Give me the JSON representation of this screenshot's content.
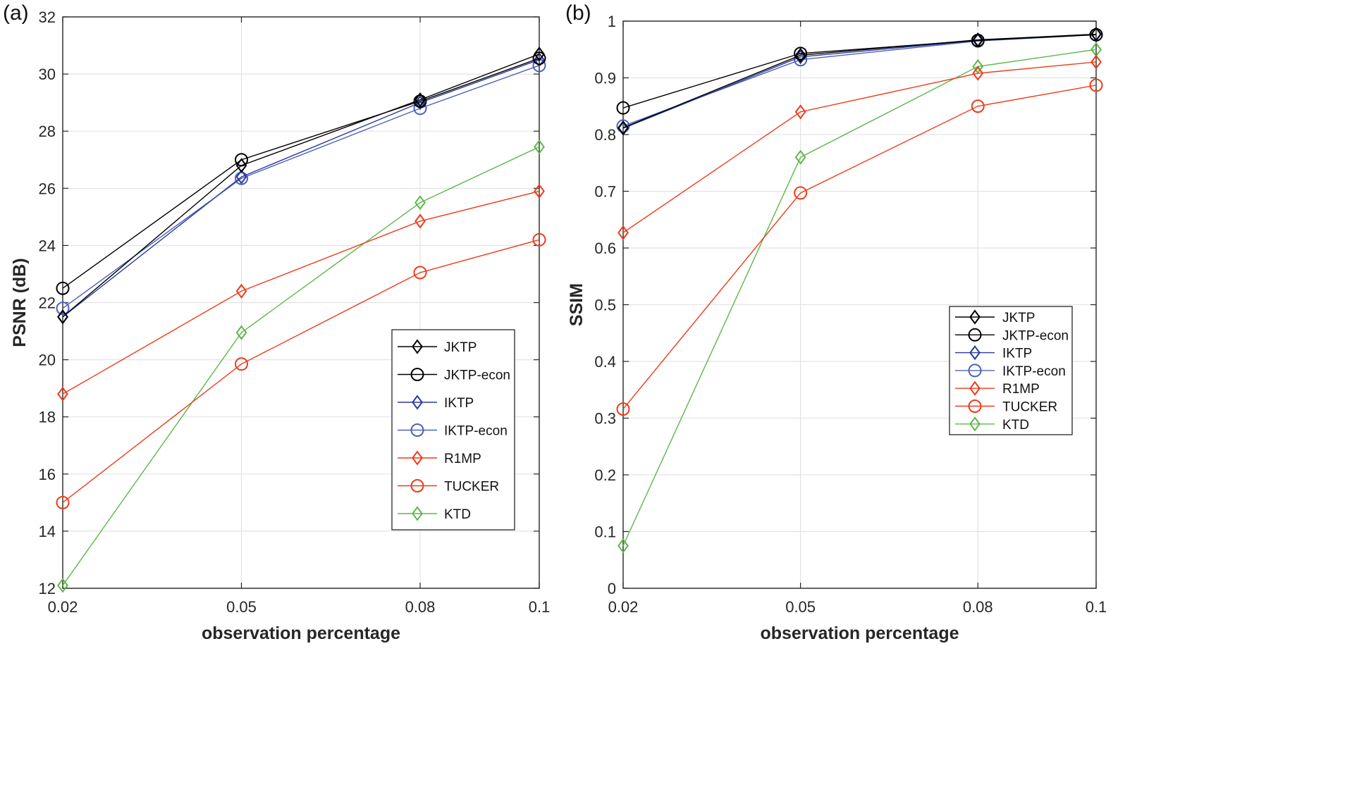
{
  "panels": [
    {
      "label": "(a)"
    },
    {
      "label": "(b)"
    }
  ],
  "chart_data": [
    {
      "type": "line",
      "panel": "(a)",
      "title": "",
      "xlabel": "observation percentage",
      "ylabel": "PSNR (dB)",
      "x": [
        0.02,
        0.05,
        0.08,
        0.1
      ],
      "x_tick_labels": [
        "0.02",
        "0.05",
        "0.08",
        "0.1"
      ],
      "xlim": [
        0.02,
        0.1
      ],
      "ylim": [
        12,
        32
      ],
      "y_ticks": [
        12,
        14,
        16,
        18,
        20,
        22,
        24,
        26,
        28,
        30,
        32
      ],
      "grid": true,
      "legend_position": "lower-right",
      "series": [
        {
          "name": "JKTP",
          "color": "#000000",
          "marker": "diamond",
          "values": [
            21.5,
            26.8,
            29.1,
            30.7
          ]
        },
        {
          "name": "JKTP-econ",
          "color": "#000000",
          "marker": "circle",
          "values": [
            22.5,
            27.0,
            29.05,
            30.55
          ]
        },
        {
          "name": "IKTP",
          "color": "#2b3a9e",
          "marker": "diamond",
          "values": [
            21.5,
            26.4,
            29.0,
            30.5
          ]
        },
        {
          "name": "IKTP-econ",
          "color": "#4f60b8",
          "marker": "circle",
          "values": [
            21.8,
            26.35,
            28.8,
            30.3
          ]
        },
        {
          "name": "R1MP",
          "color": "#ee3b1b",
          "marker": "diamond",
          "values": [
            18.8,
            22.4,
            24.85,
            25.9
          ]
        },
        {
          "name": "TUCKER",
          "color": "#ee3b1b",
          "marker": "circle",
          "values": [
            15.0,
            19.85,
            23.05,
            24.2
          ]
        },
        {
          "name": "KTD",
          "color": "#5cb84a",
          "marker": "diamond",
          "values": [
            12.1,
            20.95,
            25.5,
            27.45
          ]
        }
      ]
    },
    {
      "type": "line",
      "panel": "(b)",
      "title": "",
      "xlabel": "observation percentage",
      "ylabel": "SSIM",
      "x": [
        0.02,
        0.05,
        0.08,
        0.1
      ],
      "x_tick_labels": [
        "0.02",
        "0.05",
        "0.08",
        "0.1"
      ],
      "xlim": [
        0.02,
        0.1
      ],
      "ylim": [
        0,
        1
      ],
      "y_ticks": [
        0,
        0.1,
        0.2,
        0.3,
        0.4,
        0.5,
        0.6,
        0.7,
        0.8,
        0.9,
        1
      ],
      "y_tick_labels": [
        "0",
        "0.1",
        "0.2",
        "0.3",
        "0.4",
        "0.5",
        "0.6",
        "0.7",
        "0.8",
        "0.9",
        "1"
      ],
      "grid": true,
      "legend_position": "center-right",
      "series": [
        {
          "name": "JKTP",
          "color": "#000000",
          "marker": "diamond",
          "values": [
            0.812,
            0.94,
            0.967,
            0.977
          ]
        },
        {
          "name": "JKTP-econ",
          "color": "#000000",
          "marker": "circle",
          "values": [
            0.847,
            0.943,
            0.966,
            0.976
          ]
        },
        {
          "name": "IKTP",
          "color": "#2b3a9e",
          "marker": "diamond",
          "values": [
            0.811,
            0.937,
            0.966,
            0.977
          ]
        },
        {
          "name": "IKTP-econ",
          "color": "#4f60b8",
          "marker": "circle",
          "values": [
            0.815,
            0.932,
            0.965,
            0.976
          ]
        },
        {
          "name": "R1MP",
          "color": "#ee3b1b",
          "marker": "diamond",
          "values": [
            0.627,
            0.84,
            0.908,
            0.928
          ]
        },
        {
          "name": "TUCKER",
          "color": "#ee3b1b",
          "marker": "circle",
          "values": [
            0.316,
            0.697,
            0.85,
            0.887
          ]
        },
        {
          "name": "KTD",
          "color": "#5cb84a",
          "marker": "diamond",
          "values": [
            0.075,
            0.76,
            0.92,
            0.95
          ]
        }
      ]
    }
  ]
}
